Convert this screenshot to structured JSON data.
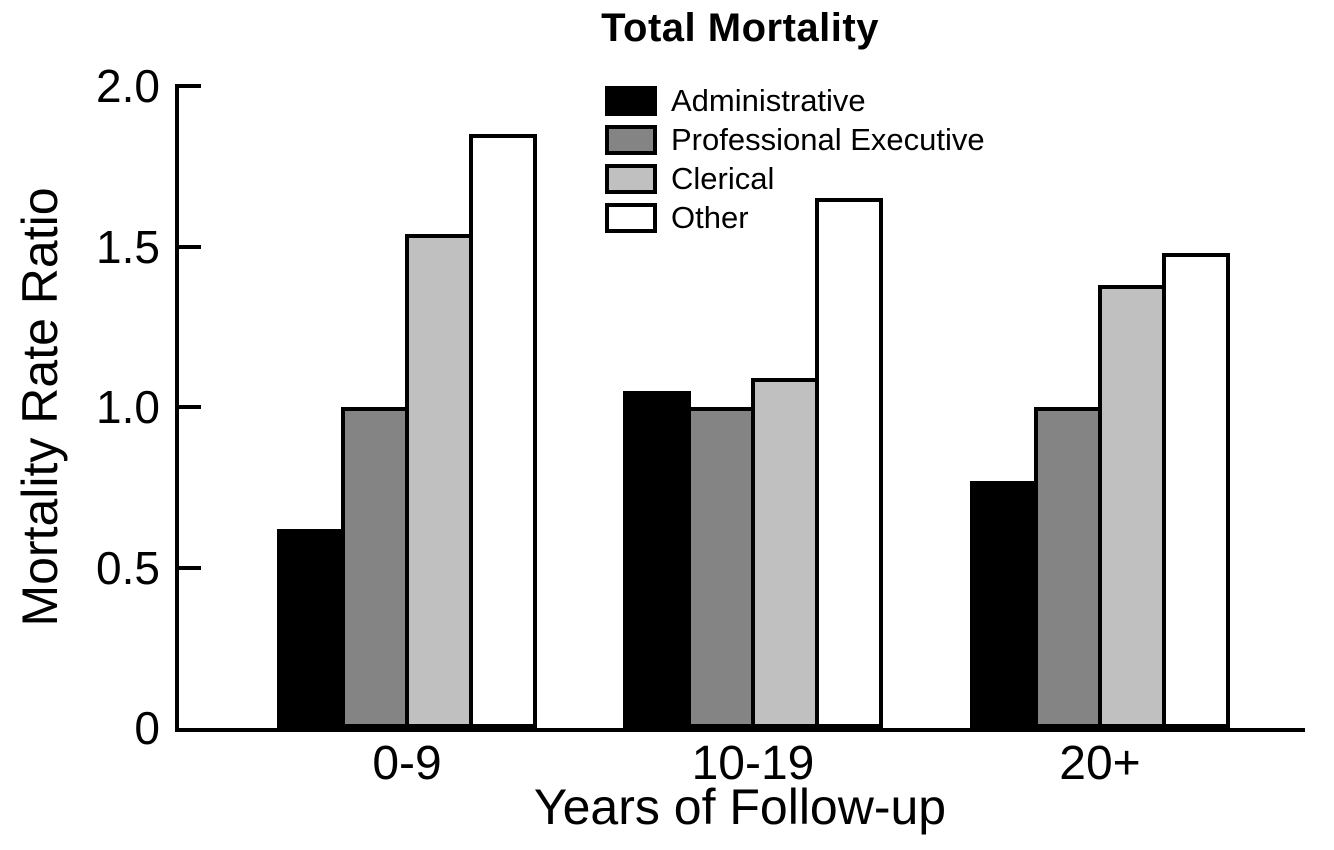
{
  "title": "Total Mortality",
  "axis_color": "#000000",
  "background_color": "#ffffff",
  "chart_data": {
    "type": "bar",
    "title": "Total Mortality",
    "xlabel": "Years of Follow-up",
    "ylabel": "Mortality Rate Ratio",
    "categories": [
      "0-9",
      "10-19",
      "20+"
    ],
    "series": [
      {
        "name": "Administrative",
        "color": "#000000",
        "values": [
          0.62,
          1.05,
          0.77
        ]
      },
      {
        "name": "Professional Executive",
        "color": "#848484",
        "values": [
          1.0,
          1.0,
          1.0
        ]
      },
      {
        "name": "Clerical",
        "color": "#c0c0c0",
        "values": [
          1.54,
          1.09,
          1.38
        ]
      },
      {
        "name": "Other",
        "color": "#ffffff",
        "values": [
          1.85,
          1.65,
          1.48
        ]
      }
    ],
    "ylim": [
      0,
      2.0
    ],
    "yticks": [
      {
        "value": 0,
        "label": "0"
      },
      {
        "value": 0.5,
        "label": "0.5"
      },
      {
        "value": 1.0,
        "label": "1.0"
      },
      {
        "value": 1.5,
        "label": "1.5"
      },
      {
        "value": 2.0,
        "label": "2.0"
      }
    ],
    "grid": false,
    "legend_position": "upper center"
  }
}
